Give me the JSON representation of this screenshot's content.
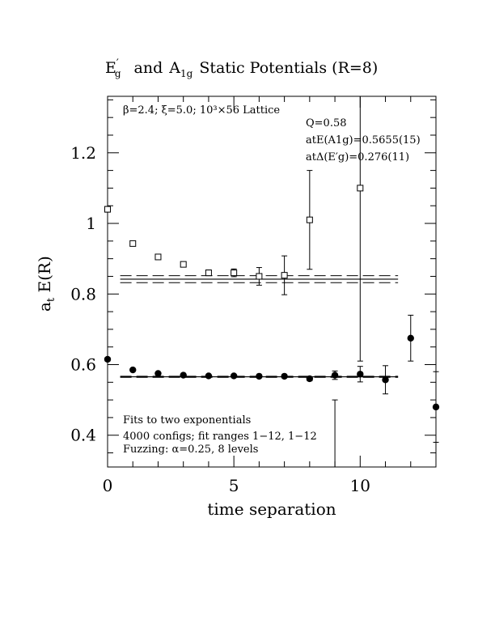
{
  "chart_data": {
    "type": "scatter",
    "title": "E′g and A1g Static Potentials (R=8)",
    "title_parts": {
      "e_symbol": "E",
      "e_prime": "′",
      "e_sub": "g",
      "and_word": "and",
      "a_symbol": "A",
      "a_sub": "1g",
      "rest": "Static Potentials (R=8)"
    },
    "xlabel": "time separation",
    "ylabel": {
      "main": "a",
      "sub": "t",
      "rest": " E(R)"
    },
    "xlim": [
      0,
      13
    ],
    "ylim": [
      0.31,
      1.36
    ],
    "x_ticks": [
      0,
      5,
      10
    ],
    "y_ticks": [
      0.4,
      0.6,
      0.8,
      1.0,
      1.2
    ],
    "x_tick_labels": [
      "0",
      "5",
      "10"
    ],
    "y_tick_labels": [
      "0.4",
      "0.6",
      "0.8",
      "1",
      "1.2"
    ],
    "annotations": {
      "lattice": "β=2.4; ξ=5.0; 10³×56 Lattice",
      "q_value": "Q=0.58",
      "a1g_energy": "atE(A1g)=0.5655(15)",
      "eg_gap": "atΔ(E′g)=0.276(11)",
      "fits": "Fits to two exponentials",
      "configs": "4000 configs; fit ranges 1−12, 1−12",
      "fuzzing": "Fuzzing: α=0.25, 8 levels"
    },
    "series": [
      {
        "name": "E′g",
        "marker": "open-square",
        "x": [
          0,
          1,
          2,
          3,
          4,
          5,
          6,
          7,
          8,
          10
        ],
        "y": [
          1.04,
          0.943,
          0.905,
          0.884,
          0.86,
          0.86,
          0.85,
          0.853,
          1.01,
          1.1
        ],
        "err_low": [
          0.008,
          0.006,
          0.006,
          0.006,
          0.008,
          0.011,
          0.025,
          0.055,
          0.14,
          0.49
        ],
        "err_high": [
          0.008,
          0.006,
          0.006,
          0.006,
          0.008,
          0.011,
          0.025,
          0.055,
          0.14,
          0.26
        ]
      },
      {
        "name": "A1g",
        "marker": "filled-circle",
        "x": [
          0,
          1,
          2,
          3,
          4,
          5,
          6,
          7,
          8,
          9,
          10,
          11,
          12,
          13
        ],
        "y": [
          0.615,
          0.585,
          0.575,
          0.57,
          0.568,
          0.568,
          0.567,
          0.567,
          0.56,
          0.57,
          0.573,
          0.557,
          0.675,
          0.48
        ],
        "err_low": [
          0.005,
          0.003,
          0.003,
          0.003,
          0.003,
          0.003,
          0.003,
          0.004,
          0.006,
          0.012,
          0.022,
          0.04,
          0.065,
          0.1
        ],
        "err_high": [
          0.005,
          0.003,
          0.003,
          0.003,
          0.003,
          0.003,
          0.003,
          0.004,
          0.006,
          0.012,
          0.022,
          0.04,
          0.065,
          0.1
        ]
      },
      {
        "name": "A1g outlier bar",
        "marker": "none",
        "x": [
          9
        ],
        "y": [
          0.4
        ],
        "err_low": [
          0.1
        ],
        "err_high": [
          0.1
        ]
      }
    ],
    "fit_lines": [
      {
        "name": "E′g fit",
        "t_range": [
          0.5,
          11.5
        ],
        "center": 0.842,
        "band": [
          0.832,
          0.852
        ]
      },
      {
        "name": "A1g fit",
        "t_range": [
          0.5,
          11.5
        ],
        "center": 0.5655,
        "band": [
          0.564,
          0.567
        ]
      }
    ]
  }
}
